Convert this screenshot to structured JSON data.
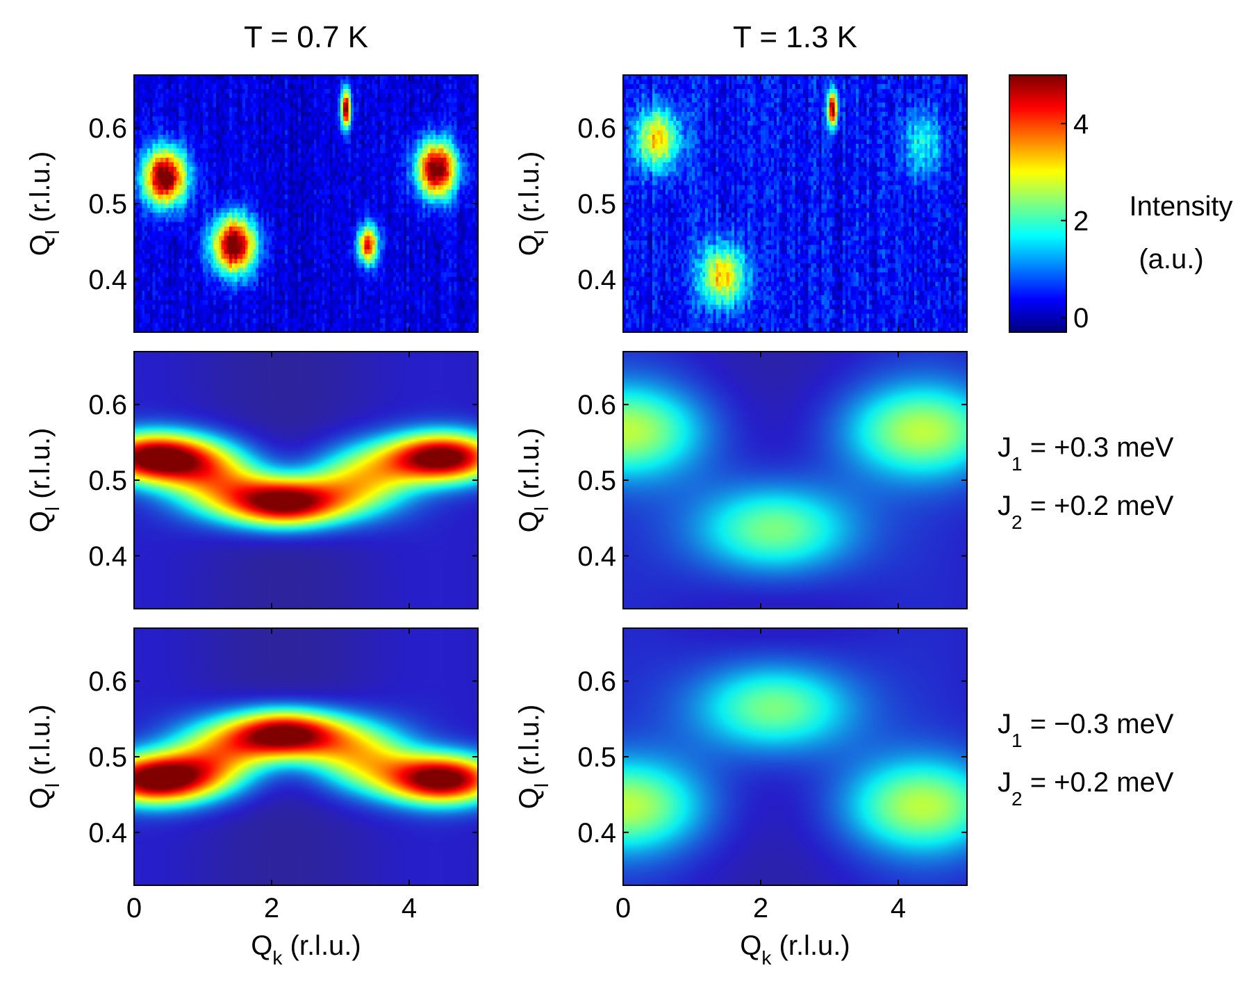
{
  "chart_data": {
    "type": "heatmap",
    "colormap": "jet",
    "column_titles": [
      "T = 0.7 K",
      "T = 1.3 K"
    ],
    "colorbar": {
      "label_line1": "Intensity",
      "label_line2": "(a.u.)",
      "range": [
        -0.3,
        5
      ],
      "ticks": [
        {
          "value": 0,
          "label": "0"
        },
        {
          "value": 2,
          "label": "2"
        },
        {
          "value": 4,
          "label": "4"
        }
      ]
    },
    "x_axis": {
      "main": "Q",
      "sub": "k",
      "unit": "(r.l.u.)",
      "range": [
        0,
        5
      ],
      "ticks": [
        {
          "value": 0,
          "label": "0"
        },
        {
          "value": 2,
          "label": "2"
        },
        {
          "value": 4,
          "label": "4"
        }
      ]
    },
    "y_axis": {
      "main": "Q",
      "sub": "l",
      "unit": "(r.l.u.)",
      "range": [
        0.33,
        0.67
      ],
      "ticks": [
        {
          "value": 0.4,
          "label": "0.4"
        },
        {
          "value": 0.5,
          "label": "0.5"
        },
        {
          "value": 0.6,
          "label": "0.6"
        }
      ]
    },
    "row_parameters": [
      null,
      {
        "j1_main": "J",
        "j1_sub": "1",
        "j1_value": "= +0.3 meV",
        "j2_main": "J",
        "j2_sub": "2",
        "j2_value": "= +0.2 meV"
      },
      {
        "j1_main": "J",
        "j1_sub": "1",
        "j1_value": "= −0.3 meV",
        "j2_main": "J",
        "j2_sub": "2",
        "j2_value": "= +0.2 meV"
      }
    ],
    "panels": [
      {
        "row": 0,
        "col": 0,
        "kind": "measured",
        "background": 0.2,
        "noise": 0.7,
        "blocky": true,
        "peaks": [
          {
            "qk": 0.45,
            "ql": 0.535,
            "amp": 5.2,
            "wk": 0.22,
            "wl": 0.026
          },
          {
            "qk": 1.45,
            "ql": 0.445,
            "amp": 5.2,
            "wk": 0.22,
            "wl": 0.026
          },
          {
            "qk": 4.4,
            "ql": 0.545,
            "amp": 5.2,
            "wk": 0.2,
            "wl": 0.026
          },
          {
            "qk": 3.4,
            "ql": 0.445,
            "amp": 4.2,
            "wk": 0.1,
            "wl": 0.018
          },
          {
            "qk": 3.08,
            "ql": 0.625,
            "amp": 5.0,
            "wk": 0.05,
            "wl": 0.018
          }
        ]
      },
      {
        "row": 0,
        "col": 1,
        "kind": "measured",
        "background": 0.4,
        "noise": 0.9,
        "blocky": true,
        "peaks": [
          {
            "qk": 0.5,
            "ql": 0.585,
            "amp": 2.9,
            "wk": 0.22,
            "wl": 0.028
          },
          {
            "qk": 1.45,
            "ql": 0.405,
            "amp": 3.0,
            "wk": 0.22,
            "wl": 0.028
          },
          {
            "qk": 3.05,
            "ql": 0.625,
            "amp": 4.8,
            "wk": 0.05,
            "wl": 0.017
          },
          {
            "qk": 4.35,
            "ql": 0.58,
            "amp": 1.4,
            "wk": 0.2,
            "wl": 0.03
          }
        ]
      },
      {
        "row": 1,
        "col": 0,
        "kind": "model",
        "background": 0.2,
        "peaks": [
          {
            "qk": 0.3,
            "ql": 0.53,
            "amp": 5.0,
            "wk": 0.6,
            "wl": 0.023
          },
          {
            "qk": 2.2,
            "ql": 0.47,
            "amp": 5.0,
            "wk": 0.6,
            "wl": 0.023
          },
          {
            "qk": 4.5,
            "ql": 0.53,
            "amp": 5.0,
            "wk": 0.6,
            "wl": 0.023
          },
          {
            "qk": 1.2,
            "ql": 0.5,
            "amp": 2.6,
            "wk": 0.55,
            "wl": 0.032
          },
          {
            "qk": 3.3,
            "ql": 0.5,
            "amp": 2.6,
            "wk": 0.55,
            "wl": 0.032
          }
        ]
      },
      {
        "row": 1,
        "col": 1,
        "kind": "model",
        "background": 0.3,
        "peaks": [
          {
            "qk": 0.05,
            "ql": 0.565,
            "amp": 2.2,
            "wk": 0.85,
            "wl": 0.045
          },
          {
            "qk": 2.2,
            "ql": 0.435,
            "amp": 2.2,
            "wk": 0.85,
            "wl": 0.045
          },
          {
            "qk": 4.35,
            "ql": 0.565,
            "amp": 2.2,
            "wk": 0.85,
            "wl": 0.045
          }
        ]
      },
      {
        "row": 2,
        "col": 0,
        "kind": "model",
        "background": 0.2,
        "peaks": [
          {
            "qk": 0.3,
            "ql": 0.47,
            "amp": 5.0,
            "wk": 0.6,
            "wl": 0.023
          },
          {
            "qk": 2.2,
            "ql": 0.53,
            "amp": 5.0,
            "wk": 0.6,
            "wl": 0.023
          },
          {
            "qk": 4.5,
            "ql": 0.47,
            "amp": 5.0,
            "wk": 0.6,
            "wl": 0.023
          },
          {
            "qk": 1.2,
            "ql": 0.5,
            "amp": 2.6,
            "wk": 0.55,
            "wl": 0.032
          },
          {
            "qk": 3.3,
            "ql": 0.5,
            "amp": 2.6,
            "wk": 0.55,
            "wl": 0.032
          }
        ]
      },
      {
        "row": 2,
        "col": 1,
        "kind": "model",
        "background": 0.3,
        "peaks": [
          {
            "qk": 0.05,
            "ql": 0.435,
            "amp": 2.2,
            "wk": 0.85,
            "wl": 0.045
          },
          {
            "qk": 2.2,
            "ql": 0.565,
            "amp": 2.2,
            "wk": 0.85,
            "wl": 0.045
          },
          {
            "qk": 4.35,
            "ql": 0.435,
            "amp": 2.2,
            "wk": 0.85,
            "wl": 0.045
          }
        ]
      }
    ]
  }
}
